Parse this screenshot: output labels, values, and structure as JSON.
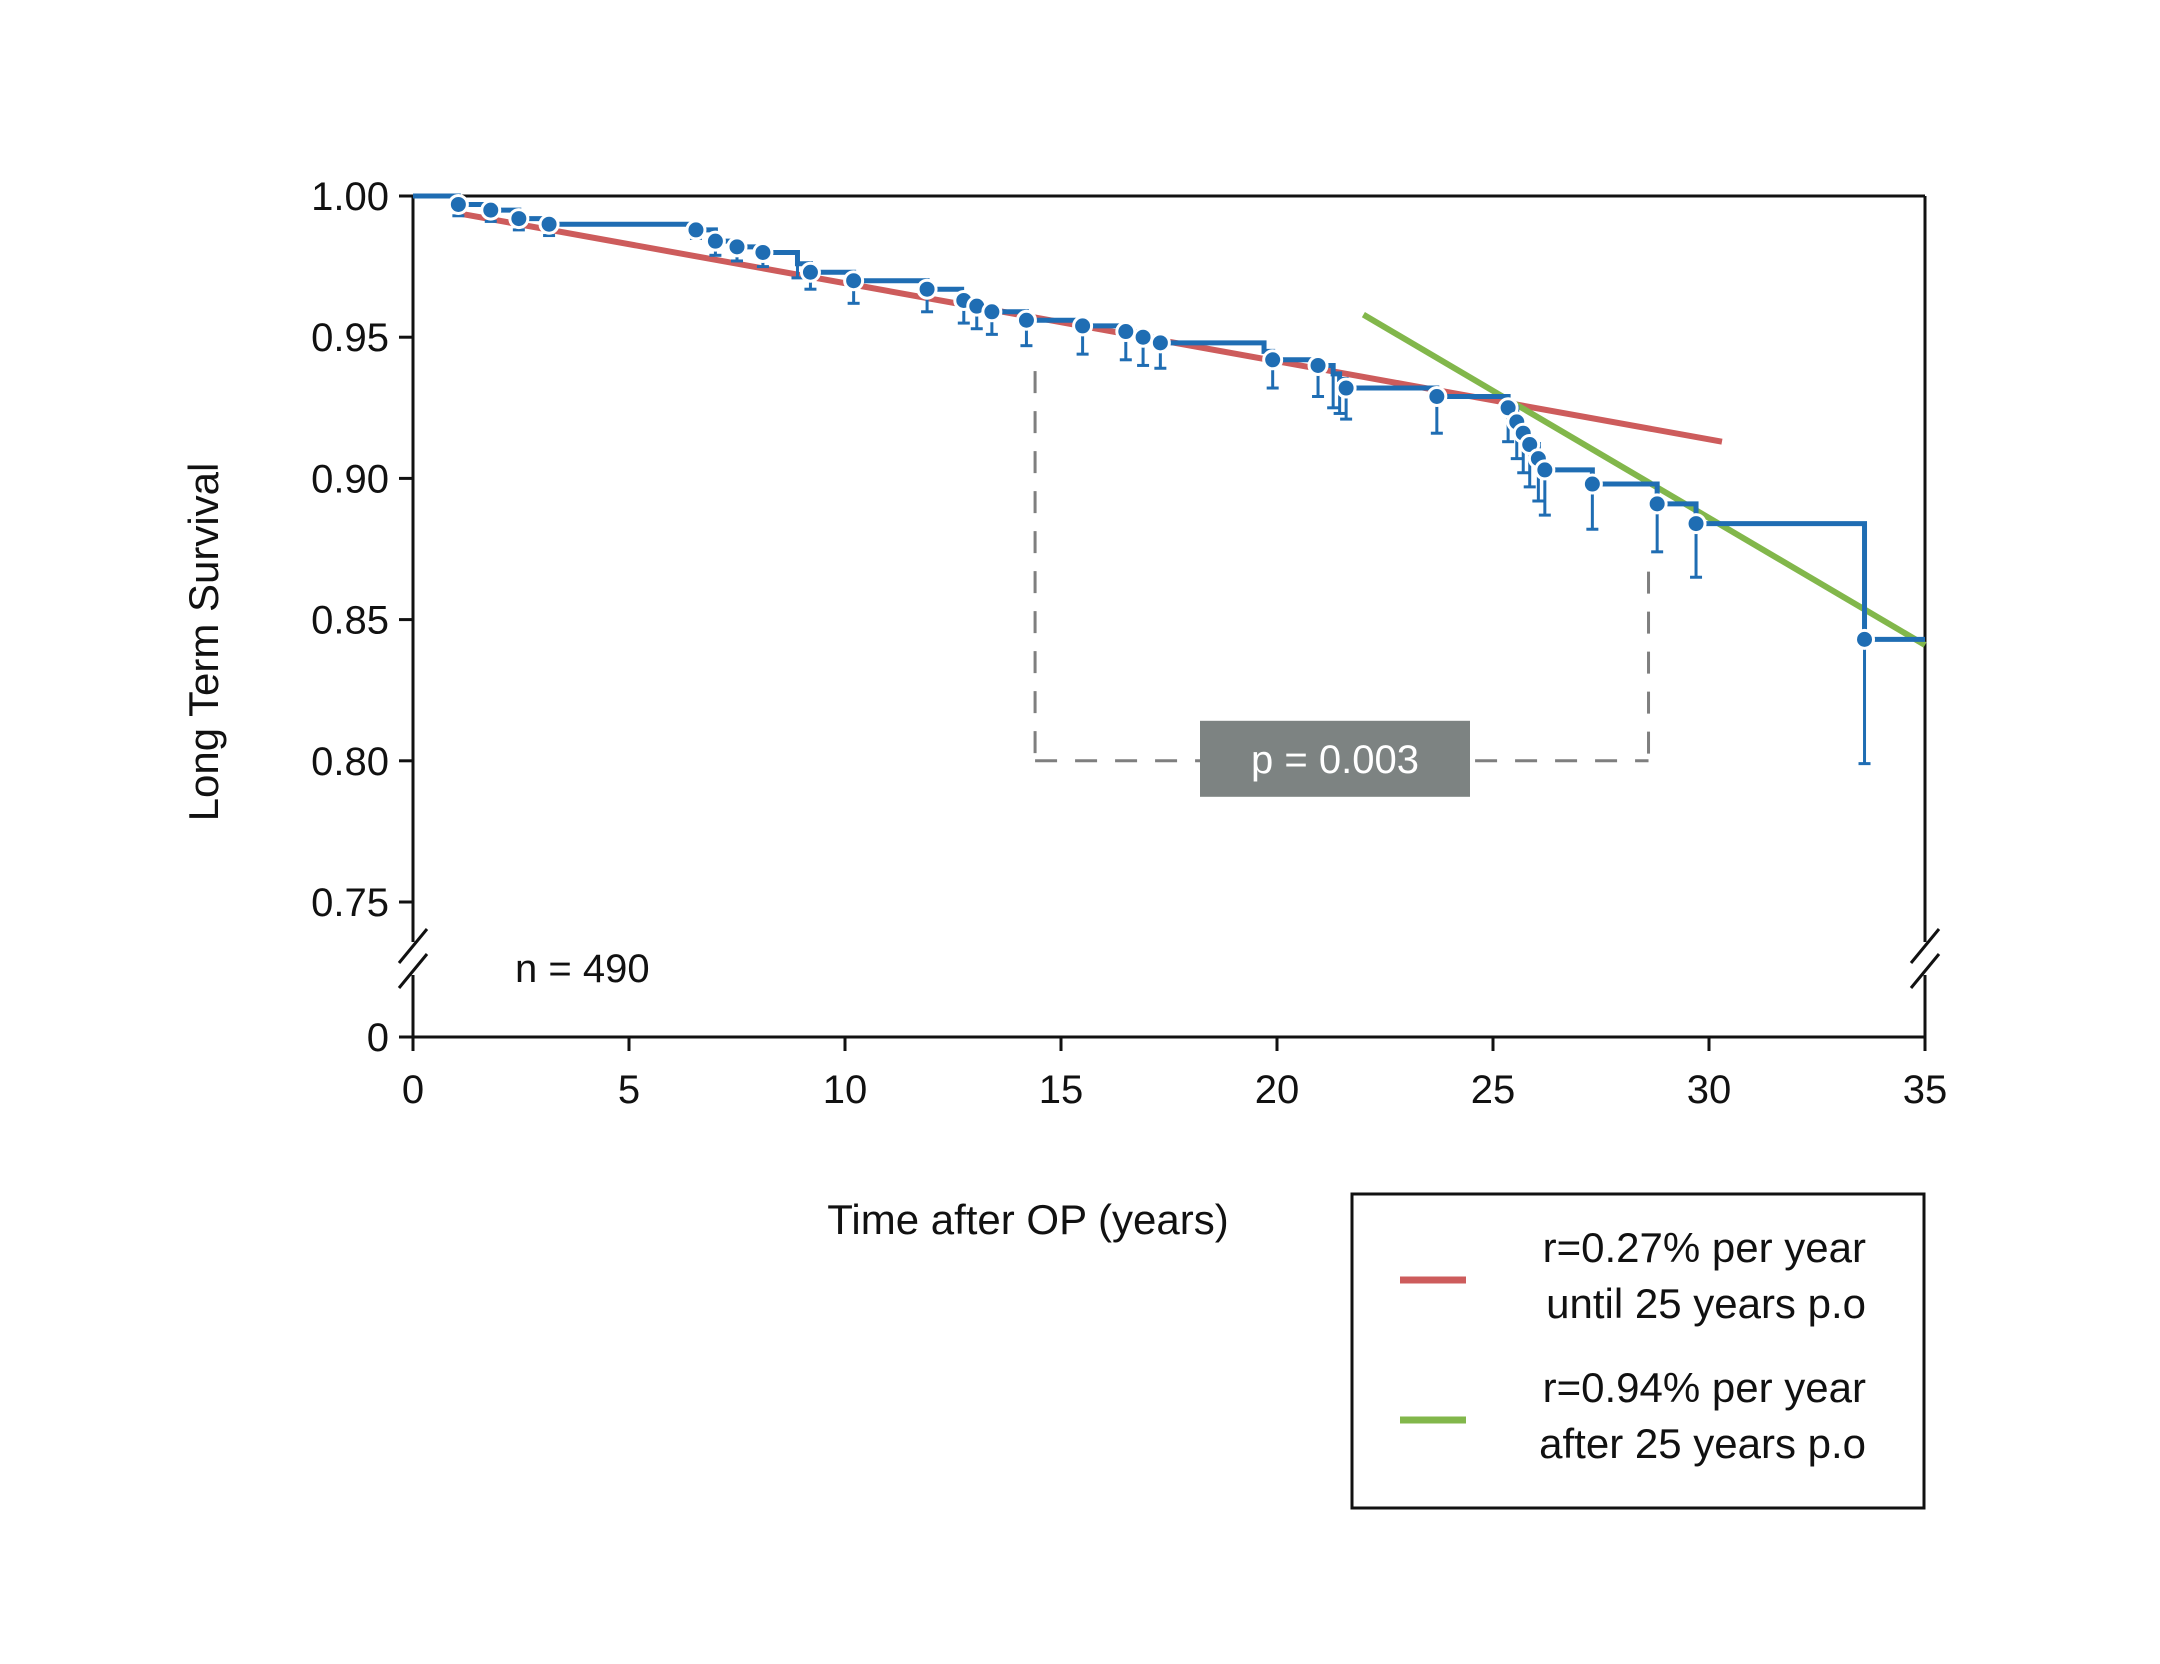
{
  "chart_data": {
    "type": "line",
    "title": "",
    "xlabel": "Time after OP (years)",
    "ylabel": "Long Term Survival",
    "xlim": [
      0,
      35
    ],
    "ylim": [
      0.75,
      1.0
    ],
    "ylim_break_baseline": 0,
    "x_ticks": [
      "0",
      "5",
      "10",
      "15",
      "20",
      "25",
      "30",
      "35"
    ],
    "y_ticks": [
      "1.00",
      "0.95",
      "0.90",
      "0.85",
      "0.80",
      "0.75"
    ],
    "y_break_tick": "0",
    "sample_size_label": "n = 490",
    "p_value_label": "p = 0.003",
    "p_bracket": {
      "x_start": 14.4,
      "x_end": 28.6,
      "y_start_top": 0.938,
      "y_end_top": 0.867,
      "y_bottom": 0.8
    },
    "km_curve": {
      "name": "Kaplan-Meier survival",
      "color": "#1f6db3",
      "steps": [
        [
          0,
          1.0
        ],
        [
          1.05,
          0.997
        ],
        [
          1.8,
          0.995
        ],
        [
          2.45,
          0.992
        ],
        [
          3.15,
          0.99
        ],
        [
          6.5,
          0.988
        ],
        [
          7.0,
          0.984
        ],
        [
          7.5,
          0.982
        ],
        [
          8.1,
          0.98
        ],
        [
          8.9,
          0.976
        ],
        [
          9.2,
          0.973
        ],
        [
          10.2,
          0.97
        ],
        [
          11.9,
          0.967
        ],
        [
          12.7,
          0.963
        ],
        [
          13.0,
          0.961
        ],
        [
          13.4,
          0.959
        ],
        [
          14.2,
          0.956
        ],
        [
          15.5,
          0.954
        ],
        [
          16.5,
          0.952
        ],
        [
          16.9,
          0.95
        ],
        [
          17.3,
          0.948
        ],
        [
          19.7,
          0.945
        ],
        [
          19.9,
          0.942
        ],
        [
          20.95,
          0.94
        ],
        [
          21.3,
          0.937
        ],
        [
          21.45,
          0.935
        ],
        [
          21.6,
          0.932
        ],
        [
          23.7,
          0.929
        ],
        [
          25.35,
          0.925
        ],
        [
          25.55,
          0.92
        ],
        [
          25.7,
          0.916
        ],
        [
          25.85,
          0.912
        ],
        [
          26.05,
          0.907
        ],
        [
          26.2,
          0.903
        ],
        [
          27.3,
          0.898
        ],
        [
          28.8,
          0.891
        ],
        [
          29.7,
          0.884
        ],
        [
          33.6,
          0.843
        ],
        [
          35.0,
          0.843
        ]
      ],
      "points": [
        [
          1.05,
          0.997
        ],
        [
          1.8,
          0.995
        ],
        [
          2.45,
          0.992
        ],
        [
          3.15,
          0.99
        ],
        [
          6.55,
          0.988
        ],
        [
          7.0,
          0.984
        ],
        [
          7.5,
          0.982
        ],
        [
          8.1,
          0.98
        ],
        [
          9.2,
          0.973
        ],
        [
          10.2,
          0.97
        ],
        [
          11.9,
          0.967
        ],
        [
          12.75,
          0.963
        ],
        [
          13.05,
          0.961
        ],
        [
          13.4,
          0.959
        ],
        [
          14.2,
          0.956
        ],
        [
          15.5,
          0.954
        ],
        [
          16.5,
          0.952
        ],
        [
          16.9,
          0.95
        ],
        [
          17.3,
          0.948
        ],
        [
          19.9,
          0.942
        ],
        [
          20.95,
          0.94
        ],
        [
          21.6,
          0.932
        ],
        [
          23.7,
          0.929
        ],
        [
          25.35,
          0.925
        ],
        [
          25.55,
          0.92
        ],
        [
          25.7,
          0.916
        ],
        [
          25.85,
          0.912
        ],
        [
          26.05,
          0.907
        ],
        [
          26.2,
          0.903
        ],
        [
          27.3,
          0.898
        ],
        [
          28.8,
          0.891
        ],
        [
          29.7,
          0.884
        ],
        [
          33.6,
          0.843
        ]
      ],
      "error_bars": [
        [
          1.05,
          0.993
        ],
        [
          1.8,
          0.991
        ],
        [
          2.45,
          0.988
        ],
        [
          3.15,
          0.986
        ],
        [
          6.55,
          0.985
        ],
        [
          7.0,
          0.979
        ],
        [
          7.5,
          0.977
        ],
        [
          8.1,
          0.975
        ],
        [
          8.9,
          0.971
        ],
        [
          9.2,
          0.967
        ],
        [
          10.2,
          0.962
        ],
        [
          11.9,
          0.959
        ],
        [
          12.75,
          0.955
        ],
        [
          13.05,
          0.953
        ],
        [
          13.4,
          0.951
        ],
        [
          14.2,
          0.947
        ],
        [
          15.5,
          0.944
        ],
        [
          16.5,
          0.942
        ],
        [
          16.9,
          0.94
        ],
        [
          17.3,
          0.939
        ],
        [
          19.9,
          0.932
        ],
        [
          20.95,
          0.929
        ],
        [
          21.3,
          0.925
        ],
        [
          21.45,
          0.923
        ],
        [
          21.6,
          0.921
        ],
        [
          23.7,
          0.916
        ],
        [
          25.35,
          0.913
        ],
        [
          25.55,
          0.907
        ],
        [
          25.7,
          0.902
        ],
        [
          25.85,
          0.897
        ],
        [
          26.05,
          0.892
        ],
        [
          26.2,
          0.887
        ],
        [
          27.3,
          0.882
        ],
        [
          28.8,
          0.874
        ],
        [
          29.7,
          0.865
        ],
        [
          33.6,
          0.799
        ]
      ]
    },
    "series": [
      {
        "name": "r=0.27% per year until 25 years p.o",
        "color": "#cd5c5c",
        "x": [
          1.0,
          30.3
        ],
        "y": [
          0.994,
          0.913
        ]
      },
      {
        "name": "r=0.94% per year after 25 years p.o",
        "color": "#82b74b",
        "x": [
          22.0,
          35.0
        ],
        "y": [
          0.958,
          0.841
        ]
      }
    ],
    "legend": {
      "position": "bottom-right",
      "entries": [
        {
          "line1": "r=0.27% per year",
          "line2": "until 25 years p.o",
          "color": "#cd5c5c"
        },
        {
          "line1": "r=0.94% per year",
          "line2": "after 25 years p.o",
          "color": "#82b74b"
        }
      ]
    }
  }
}
